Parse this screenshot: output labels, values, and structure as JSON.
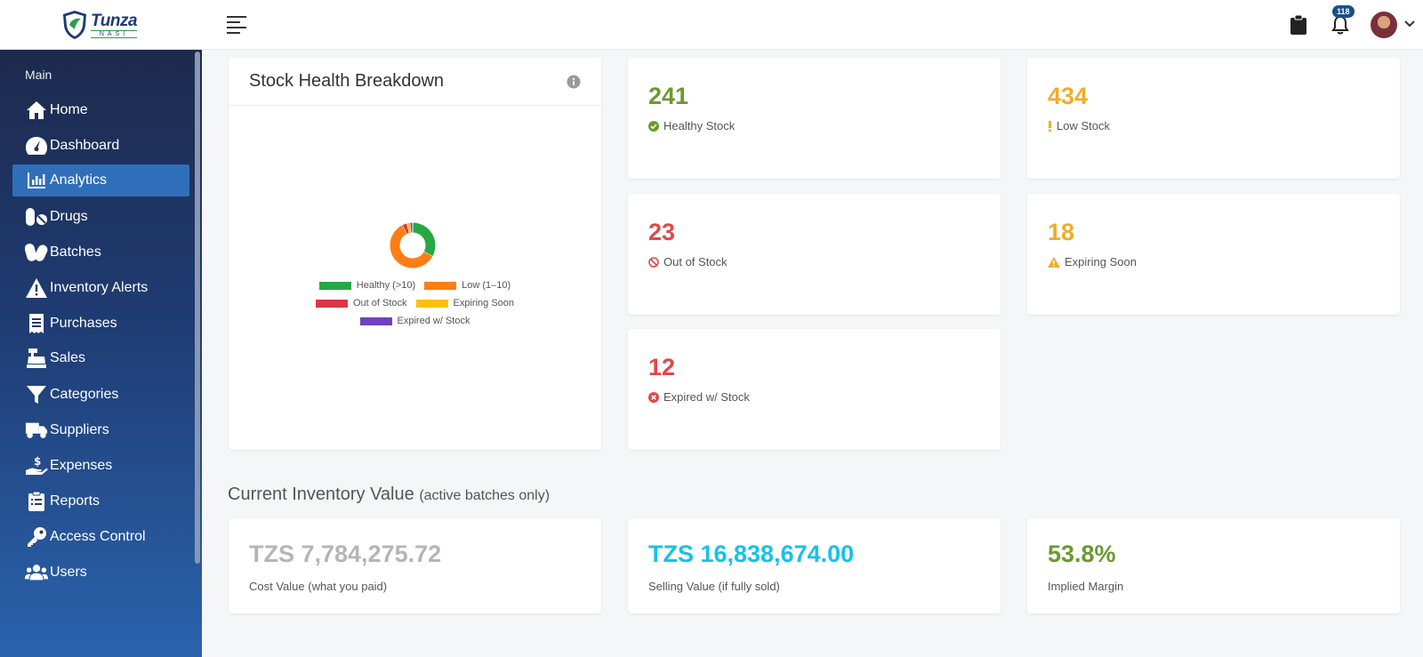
{
  "brand": {
    "name": "Tunza",
    "sub": "NASI"
  },
  "header": {
    "notification_count": "118"
  },
  "sidebar": {
    "section": "Main",
    "items": [
      {
        "label": "Home",
        "icon": "home-icon"
      },
      {
        "label": "Dashboard",
        "icon": "gauge-icon"
      },
      {
        "label": "Analytics",
        "icon": "bar-chart-icon",
        "active": true
      },
      {
        "label": "Drugs",
        "icon": "pills-icon"
      },
      {
        "label": "Batches",
        "icon": "capsules-icon"
      },
      {
        "label": "Inventory Alerts",
        "icon": "warning-triangle-icon"
      },
      {
        "label": "Purchases",
        "icon": "receipt-icon"
      },
      {
        "label": "Sales",
        "icon": "cash-register-icon"
      },
      {
        "label": "Categories",
        "icon": "filter-icon"
      },
      {
        "label": "Suppliers",
        "icon": "truck-icon"
      },
      {
        "label": "Expenses",
        "icon": "hand-dollar-icon"
      },
      {
        "label": "Reports",
        "icon": "clipboard-list-icon"
      },
      {
        "label": "Access Control",
        "icon": "key-icon"
      },
      {
        "label": "Users",
        "icon": "users-icon"
      }
    ]
  },
  "breakdown": {
    "title": "Stock Health Breakdown",
    "legend": [
      {
        "label": "Healthy (>10)",
        "color": "#28a745"
      },
      {
        "label": "Low (1–10)",
        "color": "#fd7e14"
      },
      {
        "label": "Out of Stock",
        "color": "#dc3545"
      },
      {
        "label": "Expiring Soon",
        "color": "#ffc107"
      },
      {
        "label": "Expired w/ Stock",
        "color": "#6f42c1"
      }
    ]
  },
  "chart_data": {
    "type": "pie",
    "categories": [
      "Healthy (>10)",
      "Low (1–10)",
      "Out of Stock",
      "Expiring Soon",
      "Expired w/ Stock"
    ],
    "values": [
      241,
      434,
      23,
      18,
      12
    ],
    "colors": [
      "#28a745",
      "#fd7e14",
      "#dc3545",
      "#ffc107",
      "#6f42c1"
    ],
    "title": "",
    "legend_placement": "bottom"
  },
  "stats": {
    "healthy": {
      "value": "241",
      "label": "Healthy Stock",
      "color": "#6a9a2e"
    },
    "low": {
      "value": "434",
      "label": "Low Stock",
      "color": "#f0ad28"
    },
    "out": {
      "value": "23",
      "label": "Out of Stock",
      "color": "#e04848"
    },
    "expiring": {
      "value": "18",
      "label": "Expiring Soon",
      "color": "#f0ad28"
    },
    "expired": {
      "value": "12",
      "label": "Expired w/ Stock",
      "color": "#e04848"
    }
  },
  "inventory": {
    "title": "Current Inventory Value",
    "subtitle": "(active batches only)",
    "cost": {
      "value": "TZS 7,784,275.72",
      "label": "Cost Value (what you paid)",
      "color": "#b5b5b5"
    },
    "selling": {
      "value": "TZS 16,838,674.00",
      "label": "Selling Value (if fully sold)",
      "color": "#17c1e8"
    },
    "margin": {
      "value": "53.8%",
      "label": "Implied Margin",
      "color": "#6a9a2e"
    }
  }
}
